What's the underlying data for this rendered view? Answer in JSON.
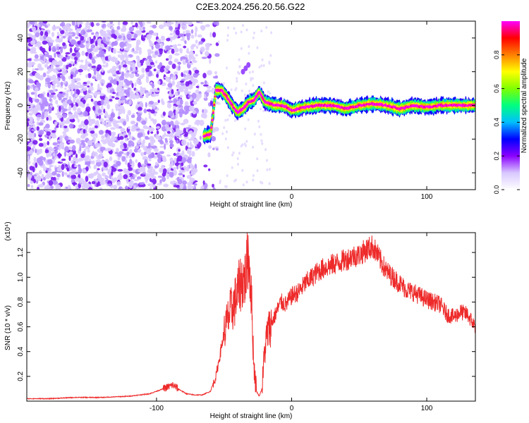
{
  "title": "C2E3.2024.256.20.56.G22",
  "chart_data": [
    {
      "type": "heatmap",
      "xlabel": "Height of straight line (km)",
      "ylabel": "Frequency (Hz)",
      "xlim": [
        -196,
        136
      ],
      "ylim": [
        -50,
        50
      ],
      "xticks": [
        "-100",
        "0",
        "100"
      ],
      "yticks": [
        "-40",
        "-20",
        "0",
        "20",
        "40"
      ],
      "colorbar": {
        "label": "Normalized spectral amplitude",
        "range": [
          0,
          1
        ],
        "ticks": [
          "0.0",
          "0.2",
          "0.4",
          "0.6",
          "0.8"
        ],
        "colors": [
          "#ffffff",
          "#d8c8ff",
          "#8b00ff",
          "#0000ff",
          "#00bfff",
          "#00ff80",
          "#80ff00",
          "#ffff00",
          "#ff8000",
          "#ff0000",
          "#ff00ff"
        ]
      },
      "ridge": {
        "x": [
          -65,
          -60,
          -56,
          -52,
          -48,
          -44,
          -40,
          -36,
          -32,
          -28,
          -24,
          -20,
          -16,
          -12,
          -8,
          -4,
          0,
          10,
          20,
          30,
          40,
          50,
          60,
          70,
          80,
          90,
          100,
          110,
          120,
          136
        ],
        "y": [
          -18,
          -17,
          9,
          9,
          5,
          0,
          -4,
          -2,
          2,
          3,
          8,
          2,
          1,
          0,
          0,
          -1,
          -3,
          -1,
          0,
          0,
          -2,
          0,
          1,
          0,
          -2,
          0,
          -1,
          0,
          0,
          0
        ]
      }
    },
    {
      "type": "line",
      "xlabel": "Height of straight line (km)",
      "ylabel": "SNR (10 * v/v)",
      "yscale_label": "(x10⁴)",
      "xlim": [
        -196,
        136
      ],
      "ylim": [
        0,
        1.36
      ],
      "xticks": [
        "-100",
        "0",
        "100"
      ],
      "yticks": [
        "0.2",
        "0.4",
        "0.6",
        "0.8",
        "1.0",
        "1.2"
      ],
      "color": "#ee2a2a",
      "series": [
        {
          "x": [
            -196,
            -180,
            -160,
            -140,
            -120,
            -105,
            -95,
            -88,
            -84,
            -78,
            -72,
            -66,
            -60,
            -56,
            -50,
            -46,
            -42,
            -38,
            -34,
            -32,
            -30,
            -28,
            -26,
            -24,
            -22,
            -20,
            -18,
            -16,
            -12,
            -8,
            -4,
            0,
            5,
            10,
            15,
            20,
            25,
            30,
            35,
            40,
            45,
            50,
            55,
            60,
            65,
            70,
            75,
            80,
            85,
            90,
            95,
            100,
            105,
            110,
            115,
            120,
            125,
            130,
            136
          ],
          "y": [
            0.02,
            0.02,
            0.03,
            0.03,
            0.04,
            0.06,
            0.1,
            0.13,
            0.1,
            0.06,
            0.05,
            0.05,
            0.08,
            0.2,
            0.55,
            0.7,
            0.8,
            0.95,
            1.0,
            1.2,
            0.9,
            0.3,
            0.08,
            0.04,
            0.1,
            0.4,
            0.55,
            0.6,
            0.7,
            0.8,
            0.78,
            0.85,
            0.88,
            0.95,
            1.0,
            1.05,
            1.08,
            1.1,
            1.12,
            1.14,
            1.17,
            1.18,
            1.22,
            1.25,
            1.15,
            1.05,
            1.0,
            0.95,
            0.9,
            0.88,
            0.85,
            0.82,
            0.8,
            0.78,
            0.7,
            0.68,
            0.72,
            0.7,
            0.6
          ]
        }
      ]
    }
  ]
}
